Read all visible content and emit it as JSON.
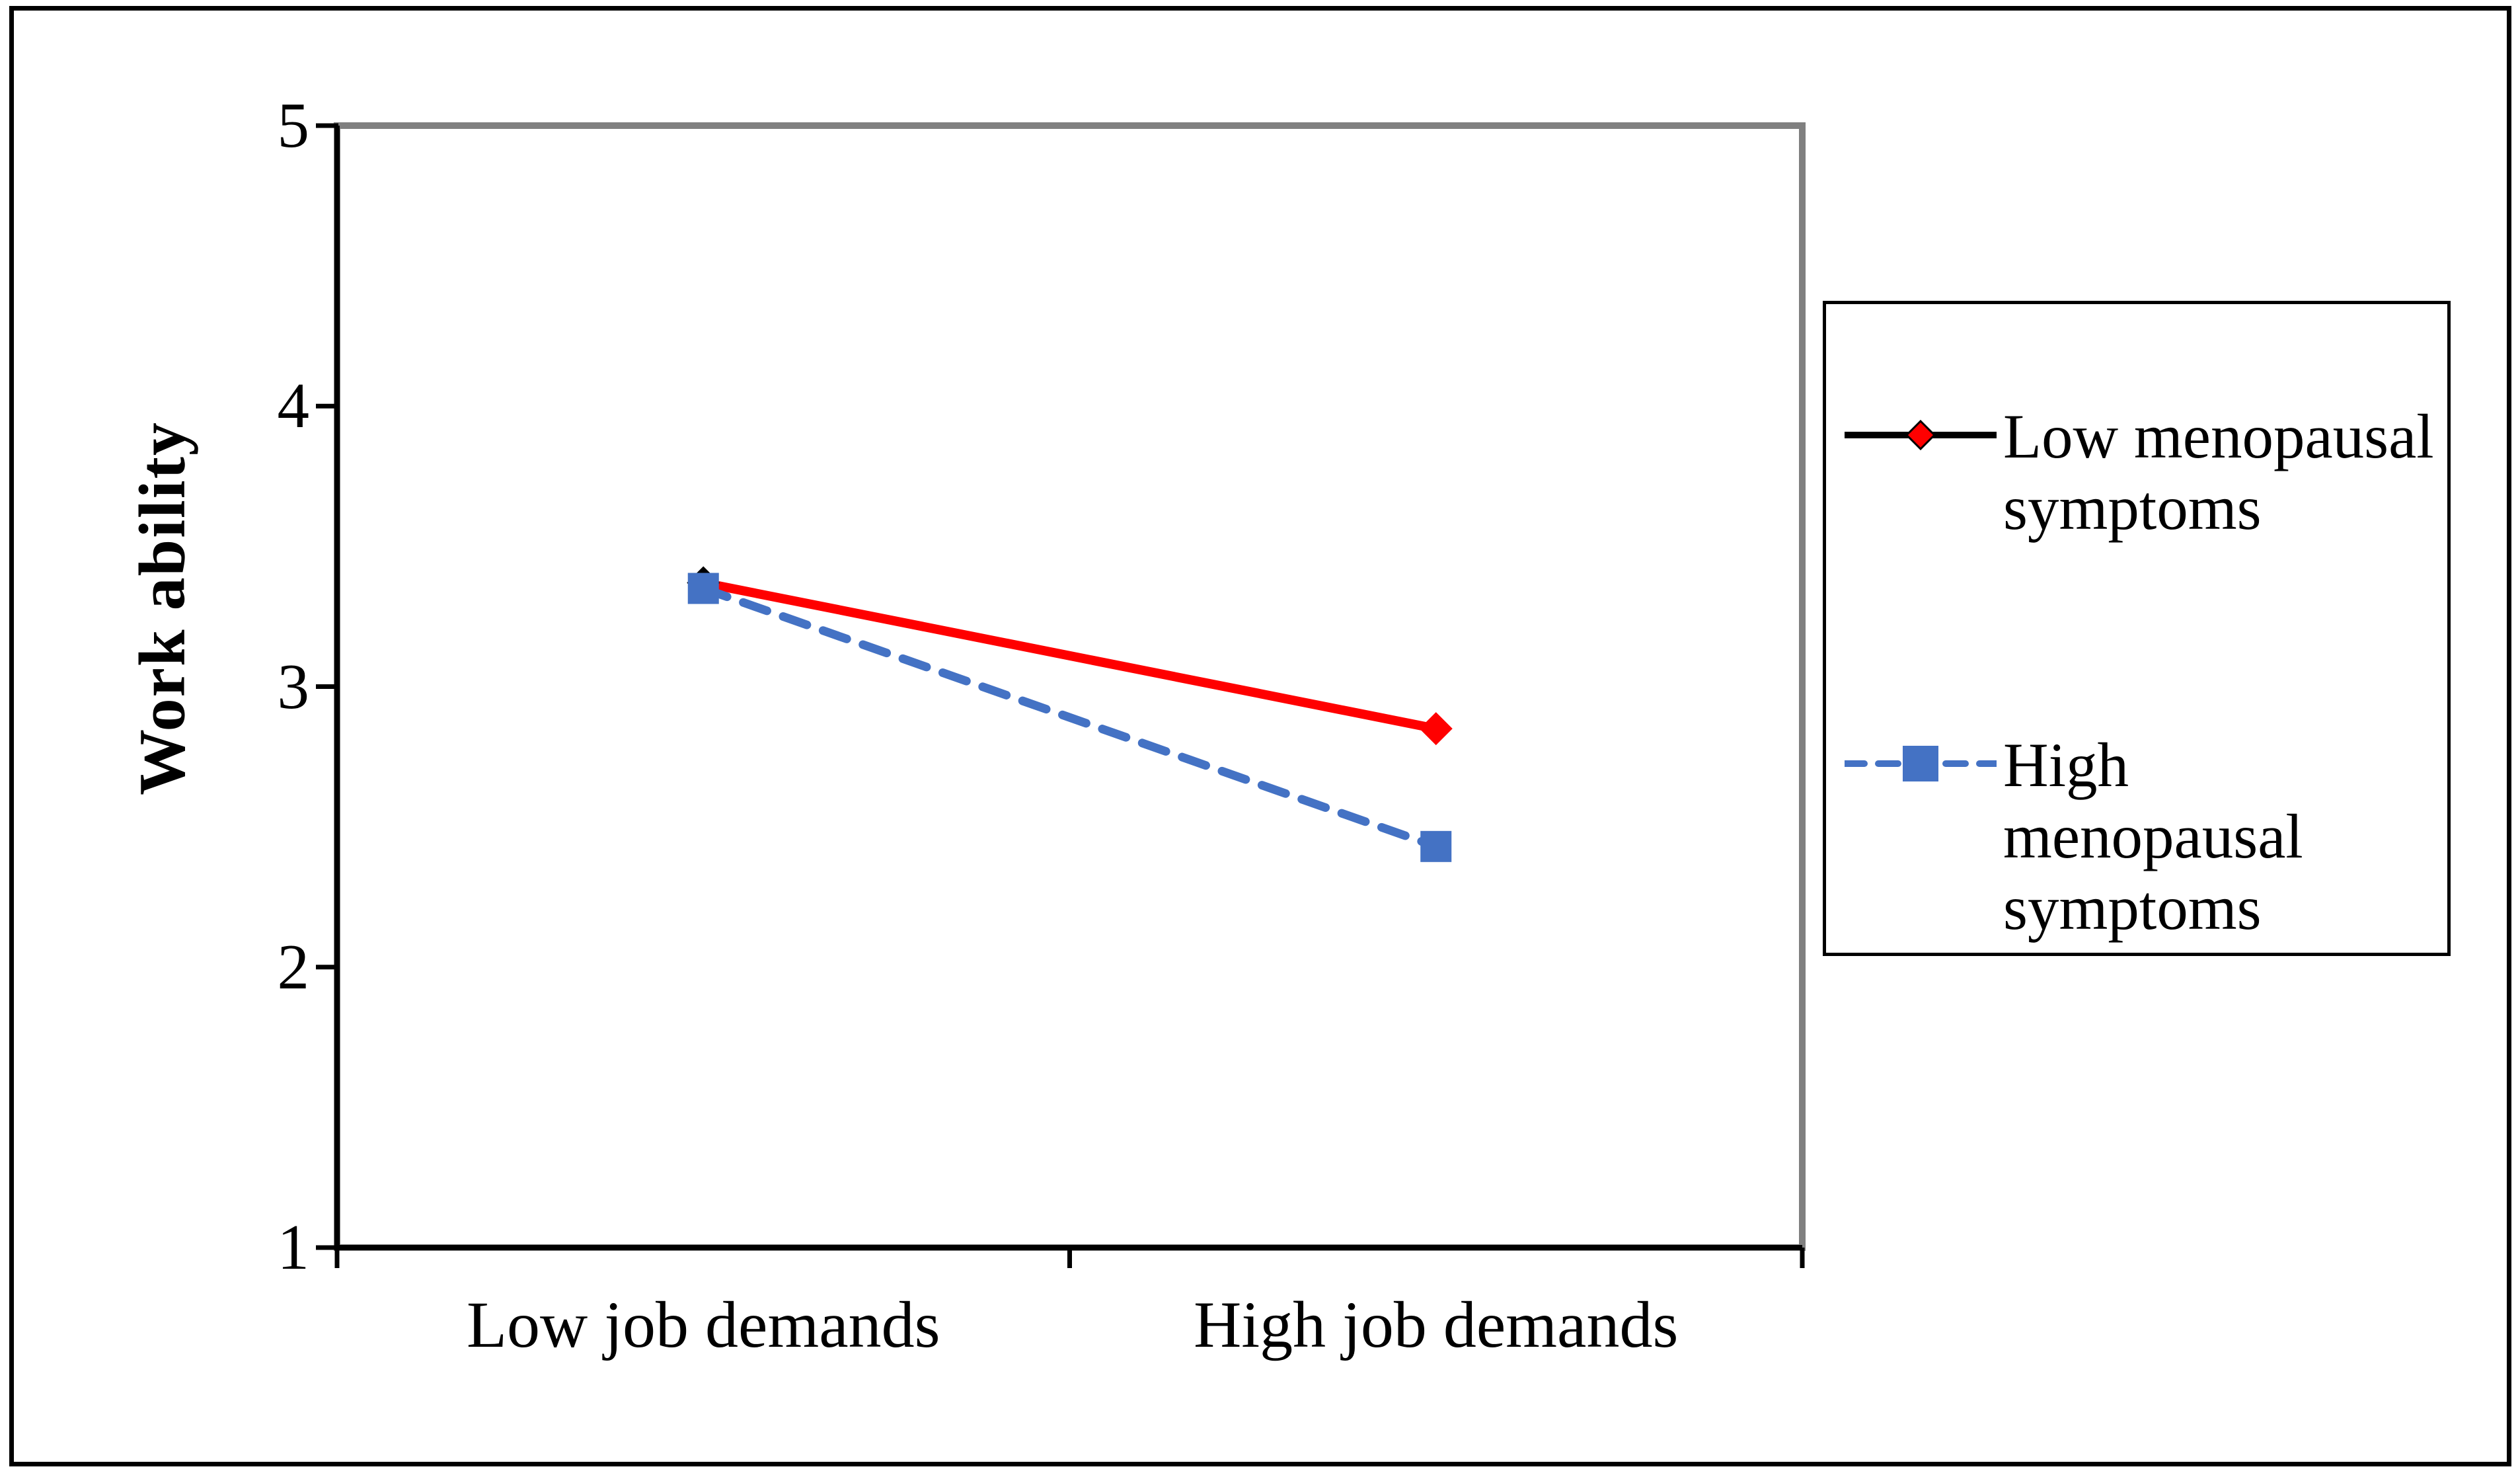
{
  "chart_data": {
    "type": "line",
    "title": "",
    "xlabel": "",
    "ylabel": "Work ability",
    "categories": [
      "Low job demands",
      "High job demands"
    ],
    "series": [
      {
        "name": "Low menopausal symptoms",
        "values": [
          3.37,
          2.85
        ],
        "color": "#FF0000",
        "line_style": "solid",
        "marker": "diamond",
        "marker_outline_color": "#000000",
        "legend_line_color": "#000000"
      },
      {
        "name": "High menopausal symptoms",
        "values": [
          3.35,
          2.43
        ],
        "color": "#4472C4",
        "line_style": "dashed",
        "marker": "square",
        "legend_line_color": "#4472C4"
      }
    ],
    "ylim": [
      1,
      5
    ],
    "yticks": [
      1,
      2,
      3,
      4,
      5
    ],
    "grid": false,
    "legend_position": "right",
    "plot_border_color": "#808080",
    "axis_color": "#000000",
    "background_color": "#FFFFFF"
  }
}
